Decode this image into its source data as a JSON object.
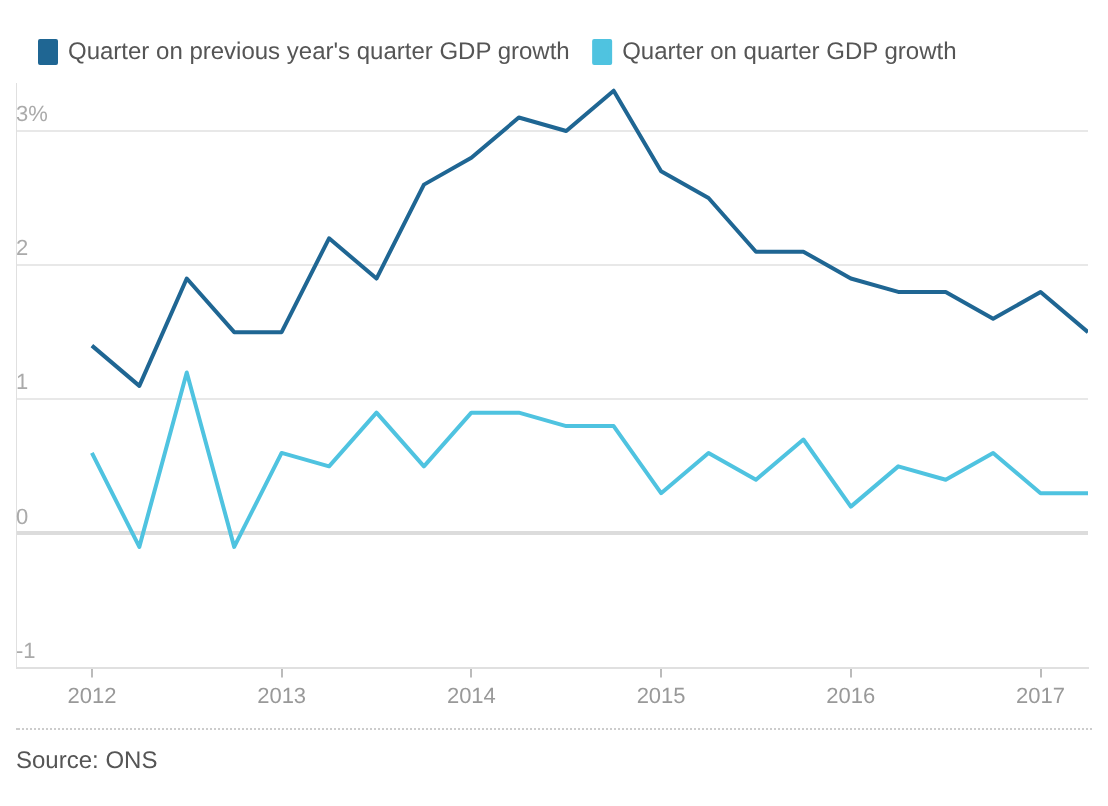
{
  "chart_data": {
    "type": "line",
    "x": [
      2012,
      2012.25,
      2012.5,
      2012.75,
      2013,
      2013.25,
      2013.5,
      2013.75,
      2014,
      2014.25,
      2014.5,
      2014.75,
      2015,
      2015.25,
      2015.5,
      2015.75,
      2016,
      2016.25,
      2016.5,
      2016.75,
      2017,
      2017.25
    ],
    "series": [
      {
        "name": "Quarter on previous year's quarter GDP growth",
        "color": "#1f6693",
        "values": [
          1.4,
          1.1,
          1.9,
          1.5,
          1.5,
          2.2,
          1.9,
          2.6,
          2.8,
          3.1,
          3.0,
          3.3,
          2.7,
          2.5,
          2.1,
          2.1,
          1.9,
          1.8,
          1.8,
          1.6,
          1.8,
          1.5
        ]
      },
      {
        "name": "Quarter on quarter GDP growth",
        "color": "#4fc3e0",
        "values": [
          0.6,
          -0.1,
          1.2,
          -0.1,
          0.6,
          0.5,
          0.9,
          0.5,
          0.9,
          0.9,
          0.8,
          0.8,
          0.3,
          0.6,
          0.4,
          0.7,
          0.2,
          0.5,
          0.4,
          0.6,
          0.3,
          0.3
        ]
      }
    ],
    "xlim": [
      2011.6,
      2017.25
    ],
    "xticks": [
      2012,
      2013,
      2014,
      2015,
      2016,
      2017
    ],
    "ylim": [
      -1,
      3.35
    ],
    "yticks": [
      -1,
      0,
      1,
      2,
      {
        "value": 3,
        "label": "3%"
      }
    ],
    "grid": "y",
    "legend": "top left",
    "marker": "none",
    "line_style": "solid",
    "annotations": [
      "Source: ONS"
    ]
  }
}
